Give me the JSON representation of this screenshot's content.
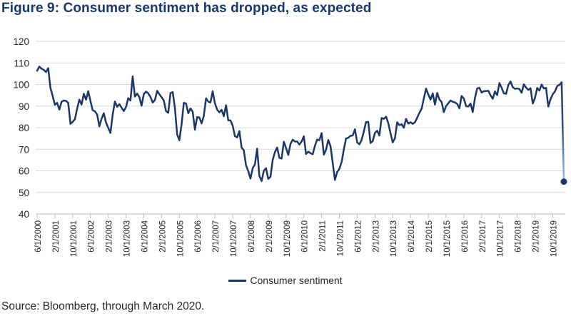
{
  "figure": {
    "title": "Figure 9: Consumer sentiment has dropped, as expected",
    "source": "Source: Bloomberg, through March 2020."
  },
  "legend": {
    "label": "Consumer sentiment"
  },
  "colors": {
    "title": "#17386f",
    "line": "#1b3668",
    "line_light": "#9fc5e8",
    "marker": "#1b3668",
    "grid": "#d9d9d9",
    "axis": "#bfbfbf",
    "text": "#262626"
  },
  "chart_data": {
    "type": "line",
    "title": "Figure 9: Consumer sentiment has dropped, as expected",
    "xlabel": "",
    "ylabel": "",
    "ylim": [
      40,
      120
    ],
    "yticks": [
      40,
      50,
      60,
      70,
      80,
      90,
      100,
      110,
      120
    ],
    "grid": "horizontal-light-gray",
    "legend_entries": [
      "Consumer sentiment"
    ],
    "legend_position": "bottom-center",
    "frequency": "monthly",
    "x_start": "6/1/2000",
    "x_end": "3/1/2020",
    "x_tick_interval_months": 8,
    "x_tick_labels": [
      "6/1/2000",
      "2/1/2001",
      "10/1/2001",
      "6/1/2002",
      "2/1/2003",
      "10/1/2003",
      "6/1/2004",
      "2/1/2005",
      "10/1/2005",
      "6/1/2006",
      "2/1/2007",
      "10/1/2007",
      "6/1/2008",
      "2/1/2009",
      "10/1/2009",
      "6/1/2010",
      "2/1/2011",
      "10/1/2011",
      "6/1/2012",
      "2/1/2013",
      "10/1/2013",
      "6/1/2014",
      "2/1/2015",
      "10/1/2015",
      "6/1/2016",
      "2/1/2017",
      "10/1/2017",
      "6/1/2018",
      "2/1/2019",
      "10/1/2019"
    ],
    "series": [
      {
        "name": "Consumer sentiment",
        "values": [
          106.4,
          108.3,
          107.3,
          106.8,
          105.8,
          107.6,
          98.4,
          94.7,
          90.6,
          91.5,
          88.4,
          92.0,
          92.6,
          92.4,
          91.5,
          81.8,
          82.7,
          83.9,
          88.8,
          93.0,
          90.7,
          95.7,
          93.0,
          96.9,
          92.4,
          88.1,
          87.6,
          86.1,
          80.6,
          84.2,
          86.7,
          82.4,
          79.9,
          77.6,
          86.0,
          92.1,
          89.7,
          90.9,
          89.3,
          87.7,
          89.6,
          93.7,
          92.6,
          103.8,
          94.4,
          95.8,
          94.2,
          90.2,
          95.6,
          96.7,
          95.9,
          94.2,
          91.7,
          92.8,
          97.1,
          95.5,
          94.1,
          92.6,
          87.7,
          86.9,
          96.0,
          96.5,
          89.1,
          76.9,
          74.2,
          81.6,
          91.5,
          91.2,
          86.7,
          88.9,
          87.4,
          79.1,
          84.9,
          84.7,
          82.0,
          85.4,
          93.6,
          92.1,
          91.7,
          96.9,
          91.3,
          88.4,
          87.1,
          88.3,
          85.3,
          90.4,
          83.4,
          83.4,
          80.9,
          76.1,
          75.5,
          78.4,
          70.8,
          69.5,
          62.6,
          59.8,
          56.4,
          61.2,
          63.0,
          70.3,
          57.6,
          55.3,
          60.1,
          61.2,
          56.3,
          57.3,
          65.1,
          68.7,
          70.8,
          66.0,
          65.7,
          73.5,
          70.6,
          67.4,
          72.5,
          74.4,
          73.6,
          73.6,
          72.2,
          73.6,
          76.0,
          67.8,
          68.9,
          68.2,
          67.7,
          71.6,
          74.5,
          74.2,
          77.5,
          67.5,
          69.8,
          74.3,
          71.5,
          63.7,
          55.8,
          59.4,
          60.9,
          64.1,
          69.9,
          75.0,
          75.3,
          76.2,
          76.4,
          79.3,
          73.2,
          72.3,
          74.3,
          78.3,
          82.6,
          82.7,
          72.9,
          73.8,
          77.6,
          78.6,
          76.4,
          84.5,
          84.1,
          85.1,
          82.1,
          77.5,
          73.2,
          75.1,
          82.5,
          81.2,
          81.6,
          80.0,
          84.1,
          81.9,
          82.5,
          81.8,
          82.5,
          84.6,
          86.9,
          88.8,
          93.6,
          98.1,
          95.4,
          93.0,
          95.9,
          90.7,
          96.1,
          93.1,
          91.9,
          87.2,
          90.0,
          91.3,
          92.6,
          92.0,
          91.7,
          91.0,
          89.0,
          94.7,
          93.5,
          90.0,
          89.8,
          91.2,
          87.2,
          93.8,
          98.2,
          98.5,
          96.3,
          96.9,
          97.0,
          97.1,
          95.0,
          93.4,
          96.8,
          95.1,
          100.7,
          98.5,
          95.9,
          95.7,
          99.7,
          101.4,
          98.8,
          98.0,
          98.2,
          97.9,
          96.2,
          100.1,
          98.6,
          97.5,
          98.3,
          91.2,
          93.8,
          98.4,
          97.2,
          100.0,
          98.2,
          98.4,
          89.8,
          93.2,
          95.5,
          96.8,
          99.3,
          99.8,
          101.0,
          55.0
        ]
      }
    ],
    "final_point": {
      "x": "3/1/2020",
      "value": 55.0,
      "marker": "filled-circle",
      "segment_style": "gradient-dark-navy-to-light-blue"
    }
  }
}
